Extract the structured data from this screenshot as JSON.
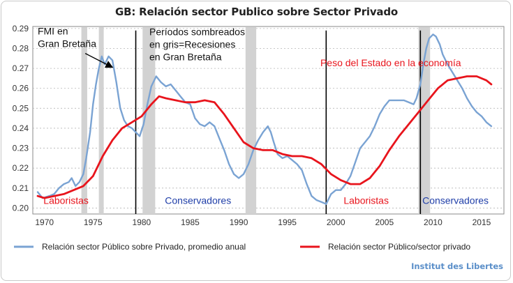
{
  "header": {
    "title": "GB: Relación sector Publico sobre Sector Privado"
  },
  "footer": {
    "credit": "Institut des Libertes"
  },
  "colors": {
    "blue": "#7aa3d3",
    "red": "#e8141c",
    "recession": "#d2d2d2",
    "grid": "#b5b5b5"
  },
  "chart_data": {
    "type": "line",
    "title": "GB: Relación sector Publico sobre Sector Privado",
    "xlabel": "",
    "ylabel": "",
    "xlim": [
      1968.8,
      2017.3
    ],
    "ylim": [
      0.197,
      0.291
    ],
    "x_ticks": [
      1970,
      1975,
      1980,
      1985,
      1990,
      1995,
      2000,
      2005,
      2010,
      2015
    ],
    "y_ticks": [
      0.2,
      0.21,
      0.22,
      0.23,
      0.24,
      0.25,
      0.26,
      0.27,
      0.28,
      0.29
    ],
    "grid": "horizontal dashed",
    "recessions": [
      [
        1973.8,
        1974.4
      ],
      [
        1975.6,
        1976.1
      ],
      [
        1980.1,
        1981.4
      ],
      [
        1990.7,
        1991.8
      ],
      [
        2008.5,
        2009.7
      ]
    ],
    "vertical_lines": [
      1979.4,
      1999.0,
      2008.7
    ],
    "series": [
      {
        "name": "Relación sector Público sobre Privado, promedio anual",
        "color": "#7aa3d3",
        "points": [
          [
            1969.3,
            0.208
          ],
          [
            1969.8,
            0.205
          ],
          [
            1970.5,
            0.206
          ],
          [
            1971.0,
            0.207
          ],
          [
            1971.5,
            0.21
          ],
          [
            1972.0,
            0.212
          ],
          [
            1972.5,
            0.213
          ],
          [
            1972.8,
            0.215
          ],
          [
            1973.2,
            0.211
          ],
          [
            1973.6,
            0.213
          ],
          [
            1974.0,
            0.217
          ],
          [
            1974.3,
            0.225
          ],
          [
            1974.7,
            0.238
          ],
          [
            1975.0,
            0.252
          ],
          [
            1975.3,
            0.262
          ],
          [
            1975.6,
            0.27
          ],
          [
            1975.9,
            0.276
          ],
          [
            1976.2,
            0.272
          ],
          [
            1976.6,
            0.276
          ],
          [
            1977.0,
            0.274
          ],
          [
            1977.4,
            0.263
          ],
          [
            1977.8,
            0.25
          ],
          [
            1978.2,
            0.244
          ],
          [
            1978.6,
            0.241
          ],
          [
            1979.0,
            0.24
          ],
          [
            1979.4,
            0.238
          ],
          [
            1979.8,
            0.236
          ],
          [
            1980.2,
            0.242
          ],
          [
            1980.6,
            0.252
          ],
          [
            1981.0,
            0.261
          ],
          [
            1981.5,
            0.266
          ],
          [
            1982.0,
            0.263
          ],
          [
            1982.5,
            0.261
          ],
          [
            1983.0,
            0.262
          ],
          [
            1983.5,
            0.259
          ],
          [
            1984.0,
            0.256
          ],
          [
            1984.5,
            0.253
          ],
          [
            1985.0,
            0.252
          ],
          [
            1985.5,
            0.245
          ],
          [
            1986.0,
            0.242
          ],
          [
            1986.5,
            0.241
          ],
          [
            1987.0,
            0.243
          ],
          [
            1987.5,
            0.241
          ],
          [
            1988.0,
            0.235
          ],
          [
            1988.5,
            0.229
          ],
          [
            1989.0,
            0.222
          ],
          [
            1989.5,
            0.217
          ],
          [
            1990.0,
            0.215
          ],
          [
            1990.5,
            0.217
          ],
          [
            1991.0,
            0.222
          ],
          [
            1991.5,
            0.229
          ],
          [
            1992.0,
            0.234
          ],
          [
            1992.5,
            0.238
          ],
          [
            1993.0,
            0.241
          ],
          [
            1993.3,
            0.238
          ],
          [
            1993.6,
            0.233
          ],
          [
            1994.0,
            0.227
          ],
          [
            1994.5,
            0.225
          ],
          [
            1995.0,
            0.226
          ],
          [
            1995.5,
            0.224
          ],
          [
            1996.0,
            0.222
          ],
          [
            1996.5,
            0.219
          ],
          [
            1997.0,
            0.212
          ],
          [
            1997.5,
            0.206
          ],
          [
            1998.0,
            0.204
          ],
          [
            1998.5,
            0.203
          ],
          [
            1999.0,
            0.202
          ],
          [
            1999.5,
            0.207
          ],
          [
            2000.0,
            0.209
          ],
          [
            2000.5,
            0.209
          ],
          [
            2001.0,
            0.212
          ],
          [
            2001.5,
            0.216
          ],
          [
            2002.0,
            0.223
          ],
          [
            2002.5,
            0.23
          ],
          [
            2003.0,
            0.233
          ],
          [
            2003.5,
            0.236
          ],
          [
            2004.0,
            0.241
          ],
          [
            2004.5,
            0.247
          ],
          [
            2005.0,
            0.251
          ],
          [
            2005.5,
            0.254
          ],
          [
            2006.0,
            0.254
          ],
          [
            2006.5,
            0.254
          ],
          [
            2007.0,
            0.254
          ],
          [
            2007.5,
            0.253
          ],
          [
            2008.0,
            0.252
          ],
          [
            2008.3,
            0.255
          ],
          [
            2008.7,
            0.262
          ],
          [
            2009.0,
            0.272
          ],
          [
            2009.3,
            0.28
          ],
          [
            2009.6,
            0.285
          ],
          [
            2010.0,
            0.287
          ],
          [
            2010.3,
            0.286
          ],
          [
            2010.7,
            0.282
          ],
          [
            2011.0,
            0.277
          ],
          [
            2011.5,
            0.272
          ],
          [
            2012.0,
            0.268
          ],
          [
            2012.5,
            0.264
          ],
          [
            2013.0,
            0.26
          ],
          [
            2013.5,
            0.255
          ],
          [
            2014.0,
            0.251
          ],
          [
            2014.5,
            0.248
          ],
          [
            2015.0,
            0.246
          ],
          [
            2015.5,
            0.243
          ],
          [
            2016.0,
            0.241
          ]
        ]
      },
      {
        "name": "Relación sector Público/sector privado",
        "color": "#e8141c",
        "points": [
          [
            1969.3,
            0.206
          ],
          [
            1970.0,
            0.205
          ],
          [
            1971.0,
            0.206
          ],
          [
            1972.0,
            0.207
          ],
          [
            1973.0,
            0.209
          ],
          [
            1974.0,
            0.211
          ],
          [
            1975.0,
            0.216
          ],
          [
            1976.0,
            0.226
          ],
          [
            1977.0,
            0.234
          ],
          [
            1978.0,
            0.24
          ],
          [
            1979.0,
            0.243
          ],
          [
            1980.0,
            0.246
          ],
          [
            1981.0,
            0.252
          ],
          [
            1981.8,
            0.256
          ],
          [
            1982.5,
            0.255
          ],
          [
            1983.5,
            0.254
          ],
          [
            1984.5,
            0.253
          ],
          [
            1985.5,
            0.253
          ],
          [
            1986.5,
            0.254
          ],
          [
            1987.5,
            0.253
          ],
          [
            1988.5,
            0.247
          ],
          [
            1989.5,
            0.24
          ],
          [
            1990.5,
            0.233
          ],
          [
            1991.5,
            0.23
          ],
          [
            1992.5,
            0.229
          ],
          [
            1993.5,
            0.229
          ],
          [
            1994.5,
            0.227
          ],
          [
            1995.5,
            0.226
          ],
          [
            1996.5,
            0.226
          ],
          [
            1997.5,
            0.225
          ],
          [
            1998.5,
            0.222
          ],
          [
            1999.5,
            0.217
          ],
          [
            2000.5,
            0.214
          ],
          [
            2001.5,
            0.212
          ],
          [
            2002.5,
            0.212
          ],
          [
            2003.5,
            0.215
          ],
          [
            2004.5,
            0.221
          ],
          [
            2005.5,
            0.229
          ],
          [
            2006.5,
            0.236
          ],
          [
            2007.5,
            0.242
          ],
          [
            2008.5,
            0.248
          ],
          [
            2009.5,
            0.254
          ],
          [
            2010.5,
            0.26
          ],
          [
            2011.5,
            0.264
          ],
          [
            2012.5,
            0.265
          ],
          [
            2013.5,
            0.266
          ],
          [
            2014.5,
            0.266
          ],
          [
            2015.5,
            0.264
          ],
          [
            2016.0,
            0.262
          ]
        ]
      }
    ],
    "annotations": [
      {
        "lines": [
          "FMI en",
          "Gran Bretaña"
        ],
        "color": "#111111",
        "x": 1969.3,
        "y": 0.2869
      },
      {
        "lines": [
          "Períodos sombreados",
          "en gris=Recesiones",
          "en Gran Bretaña"
        ],
        "color": "#111111",
        "x": 1980.8,
        "y": 0.2867
      },
      {
        "lines": [
          "Peso del Estado en la economía"
        ],
        "color": "#e8141c",
        "x": 1998.4,
        "y": 0.2711
      },
      {
        "lines": [
          "Laboristas"
        ],
        "color": "#e8141c",
        "x": 1969.9,
        "y": 0.202
      },
      {
        "lines": [
          "Conservadores"
        ],
        "color": "#1f3ea8",
        "x": 1982.4,
        "y": 0.202
      },
      {
        "lines": [
          "Laboristas"
        ],
        "color": "#e8141c",
        "x": 2000.8,
        "y": 0.202
      },
      {
        "lines": [
          "Conservadores"
        ],
        "color": "#1f3ea8",
        "x": 2008.9,
        "y": 0.202
      }
    ],
    "arrow": {
      "from": [
        1974.2,
        0.2775
      ],
      "to": [
        1977.0,
        0.2705
      ]
    },
    "legend": {
      "placement": "bottom"
    }
  }
}
